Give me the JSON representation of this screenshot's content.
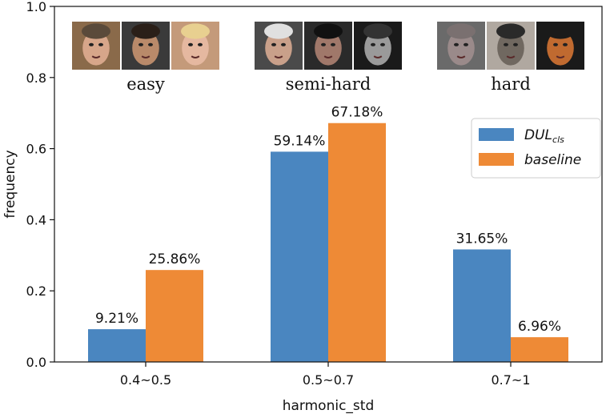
{
  "chart_data": {
    "type": "bar",
    "categories": [
      "0.4~0.5",
      "0.5~0.7",
      "0.7~1"
    ],
    "group_labels": [
      "easy",
      "semi-hard",
      "hard"
    ],
    "series": [
      {
        "name": "DUL",
        "name_subscript": "cls",
        "values": [
          0.0921,
          0.5914,
          0.3165
        ],
        "labels": [
          "9.21%",
          "59.14%",
          "31.65%"
        ],
        "color": "#4a86c0"
      },
      {
        "name": "baseline",
        "values": [
          0.2586,
          0.6718,
          0.0696
        ],
        "labels": [
          "25.86%",
          "67.18%",
          "6.96%"
        ],
        "color": "#ee8a36"
      }
    ],
    "xlabel": "harmonic_std",
    "ylabel": "frequency",
    "ylim": [
      0,
      1.0
    ],
    "yticks": [
      "0.0",
      "0.2",
      "0.4",
      "0.6",
      "0.8",
      "1.0"
    ],
    "grid": false,
    "legend_position": "upper-right"
  },
  "face_thumbnails": {
    "easy": [
      {
        "bg": "#8a6a4a",
        "skin": "#d7a68a",
        "hair": "#5a4a3a"
      },
      {
        "bg": "#3a3a3a",
        "skin": "#b98a6a",
        "hair": "#2a1f18"
      },
      {
        "bg": "#c49a7a",
        "skin": "#e5b8a0",
        "hair": "#e8d090"
      }
    ],
    "semi-hard": [
      {
        "bg": "#4a4a4a",
        "skin": "#c9a08a",
        "hair": "#e0e0e0"
      },
      {
        "bg": "#2a2a2a",
        "skin": "#a0786a",
        "hair": "#111111"
      },
      {
        "bg": "#1a1a1a",
        "skin": "#9a9a9a",
        "hair": "#333333"
      }
    ],
    "hard": [
      {
        "bg": "#6a6a6a",
        "skin": "#9a8a8a",
        "hair": "#7a7070"
      },
      {
        "bg": "#b0a8a0",
        "skin": "#706860",
        "hair": "#2a2a2a"
      },
      {
        "bg": "#1a1a1a",
        "skin": "#c06a30",
        "hair": "#1a1a1a"
      }
    ]
  }
}
